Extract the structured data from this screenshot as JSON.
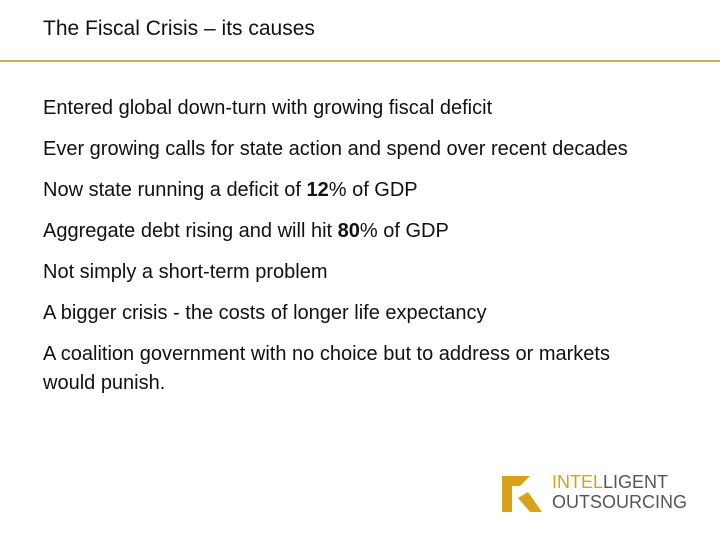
{
  "slide": {
    "title": "The Fiscal Crisis – its causes",
    "accent_color": "#c9b24a",
    "bullets": [
      {
        "pre": "Entered global down-turn with growing fiscal deficit",
        "bold": "",
        "post": ""
      },
      {
        "pre": "Ever growing calls for state action and spend over recent decades",
        "bold": "",
        "post": ""
      },
      {
        "pre": "Now state running a deficit of ",
        "bold": "12",
        "post": "% of GDP"
      },
      {
        "pre": "Aggregate debt rising and will hit ",
        "bold": "80",
        "post": "% of GDP"
      },
      {
        "pre": "Not simply a short-term problem",
        "bold": "",
        "post": ""
      },
      {
        "pre": "A bigger crisis - the costs of longer life expectancy",
        "bold": "",
        "post": ""
      },
      {
        "pre": "A coalition government with no choice but to address or markets would punish.",
        "bold": "",
        "post": ""
      }
    ]
  },
  "logo": {
    "line1_a": "INTEL",
    "line1_b": "LIGENT",
    "line2": "OUTSOURCING",
    "brand_color": "#d9a21b",
    "icon": "intelligent-outsourcing-logo-mark"
  }
}
